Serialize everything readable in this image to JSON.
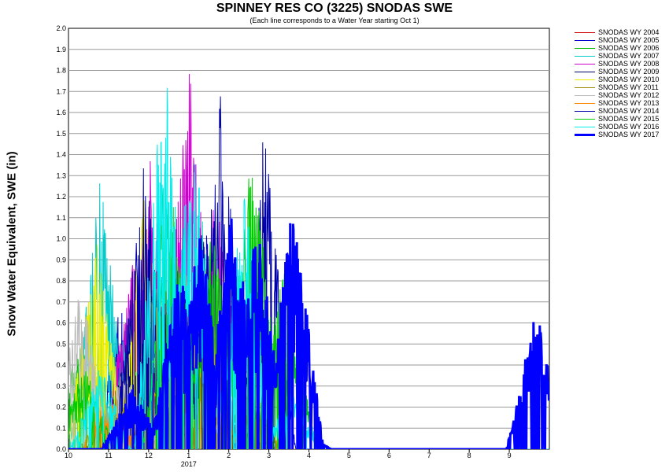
{
  "chart_data": {
    "type": "line",
    "title": "SPINNEY RES CO (3225) SNODAS SWE",
    "subtitle": "(Each line corresponds to a Water Year starting Oct 1)",
    "ylabel": "Snow Water Equivalent, SWE (in)",
    "xlabel": "",
    "x_ticks": [
      "10",
      "11",
      "12",
      "1",
      "2",
      "3",
      "4",
      "5",
      "6",
      "7",
      "8",
      "9"
    ],
    "x_year_label": "2017",
    "ylim": [
      0,
      2.0
    ],
    "y_ticks": [
      "0.0",
      "0.1",
      "0.2",
      "0.3",
      "0.4",
      "0.5",
      "0.6",
      "0.7",
      "0.8",
      "0.9",
      "1.0",
      "1.1",
      "1.2",
      "1.3",
      "1.4",
      "1.5",
      "1.6",
      "1.7",
      "1.8",
      "1.9",
      "2.0"
    ],
    "grid": true,
    "legend_position": "right",
    "series": [
      {
        "name": "SNODAS WY 2004",
        "color": "#cc0000",
        "peaks": [
          [
            2.5,
            0.3
          ],
          [
            3.1,
            0.5
          ],
          [
            3.6,
            0.35
          ],
          [
            4.0,
            0.2
          ]
        ]
      },
      {
        "name": "SNODAS WY 2005",
        "color": "#0000cc",
        "peaks": [
          [
            1.3,
            0.7
          ],
          [
            1.9,
            0.5
          ],
          [
            2.6,
            1.0
          ],
          [
            3.4,
            1.1
          ]
        ]
      },
      {
        "name": "SNODAS WY 2006",
        "color": "#00bb00",
        "peaks": [
          [
            0.3,
            0.55
          ],
          [
            1.5,
            0.6
          ],
          [
            2.4,
            1.3
          ],
          [
            3.2,
            0.8
          ]
        ]
      },
      {
        "name": "SNODAS WY 2007",
        "color": "#00cccc",
        "peaks": [
          [
            0.8,
            1.3
          ],
          [
            1.6,
            0.8
          ],
          [
            2.3,
            0.9
          ],
          [
            3.5,
            0.6
          ]
        ]
      },
      {
        "name": "SNODAS WY 2008",
        "color": "#cc00cc",
        "peaks": [
          [
            1.6,
            0.9
          ],
          [
            2.1,
            1.5
          ],
          [
            3.0,
            1.9
          ],
          [
            3.7,
            1.3
          ],
          [
            4.4,
            0.3
          ]
        ]
      },
      {
        "name": "SNODAS WY 2009",
        "color": "#000066",
        "peaks": [
          [
            1.5,
            0.5
          ],
          [
            2.2,
            0.9
          ],
          [
            3.3,
            1.1
          ],
          [
            4.1,
            0.9
          ]
        ]
      },
      {
        "name": "SNODAS WY 2010",
        "color": "#eeee00",
        "peaks": [
          [
            0.7,
            1.0
          ],
          [
            1.9,
            1.2
          ],
          [
            2.9,
            0.9
          ],
          [
            3.8,
            0.5
          ]
        ]
      },
      {
        "name": "SNODAS WY 2011",
        "color": "#998800",
        "peaks": [
          [
            1.2,
            0.3
          ],
          [
            2.3,
            0.4
          ],
          [
            3.6,
            0.6
          ],
          [
            4.5,
            0.3
          ]
        ]
      },
      {
        "name": "SNODAS WY 2012",
        "color": "#bbbbbb",
        "peaks": [
          [
            0.3,
            0.8
          ],
          [
            1.4,
            0.4
          ],
          [
            2.8,
            0.7
          ],
          [
            4.2,
            0.4
          ]
        ]
      },
      {
        "name": "SNODAS WY 2013",
        "color": "#ff8800",
        "peaks": [
          [
            1.0,
            0.25
          ],
          [
            2.5,
            0.5
          ],
          [
            3.4,
            0.9
          ],
          [
            4.6,
            0.2
          ]
        ]
      },
      {
        "name": "SNODAS WY 2014",
        "color": "#0000aa",
        "peaks": [
          [
            1.9,
            1.4
          ],
          [
            2.7,
            1.0
          ],
          [
            3.8,
            1.7
          ],
          [
            4.9,
            1.6
          ]
        ]
      },
      {
        "name": "SNODAS WY 2015",
        "color": "#00cc00",
        "peaks": [
          [
            0.4,
            0.4
          ],
          [
            2.6,
            1.2
          ],
          [
            3.6,
            1.1
          ],
          [
            4.6,
            1.5
          ],
          [
            5.4,
            0.9
          ]
        ]
      },
      {
        "name": "SNODAS WY 2016",
        "color": "#00eeee",
        "peaks": [
          [
            0.8,
            0.4
          ],
          [
            2.4,
            1.9
          ],
          [
            3.1,
            1.6
          ],
          [
            4.4,
            1.3
          ],
          [
            5.6,
            0.3
          ]
        ]
      },
      {
        "name": "SNODAS WY 2017",
        "color": "#0000ff",
        "thick": true,
        "peaks": [
          [
            1.6,
            0.3
          ],
          [
            2.8,
            0.9
          ],
          [
            3.3,
            1.1
          ],
          [
            4.1,
            1.2
          ],
          [
            4.7,
            1.1
          ],
          [
            5.6,
            1.2
          ],
          [
            5.8,
            0.1
          ],
          [
            11.7,
            0.7
          ]
        ]
      }
    ]
  }
}
